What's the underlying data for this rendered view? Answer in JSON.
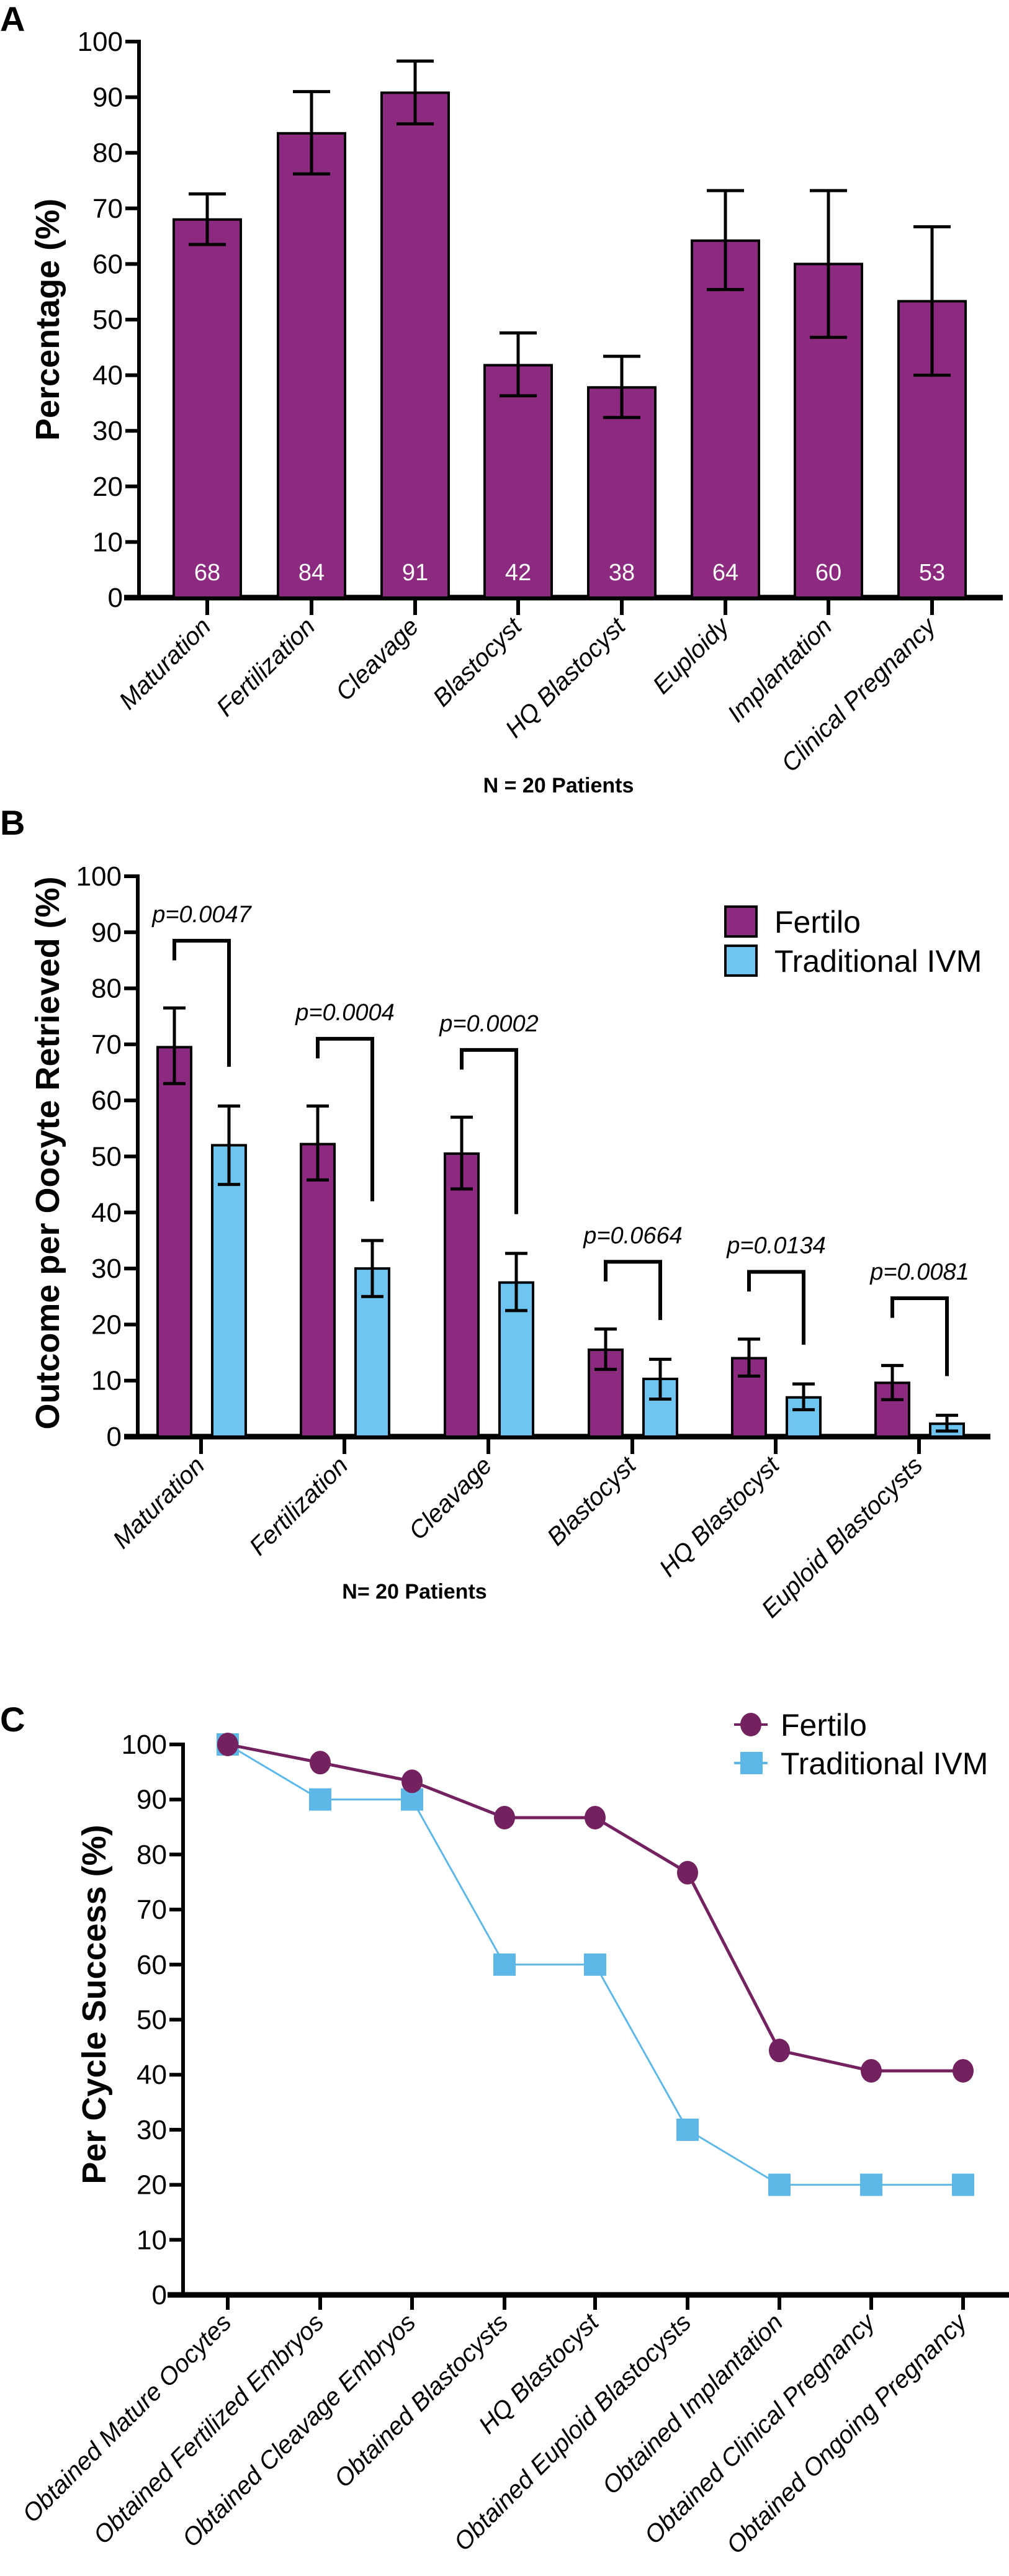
{
  "chart_data": [
    {
      "panel": "A",
      "type": "bar",
      "ylabel": "Percentage (%)",
      "xlabel": "N = 20 Patients",
      "ylim": [
        0,
        100
      ],
      "yticks": [
        "0",
        "10",
        "20",
        "30",
        "40",
        "50",
        "60",
        "70",
        "80",
        "90",
        "100"
      ],
      "categories": [
        "Maturation",
        "Fertilization",
        "Cleavage",
        "Blastocyst",
        "HQ Blastocyst",
        "Euploidy",
        "Implantation",
        "Clinical Pregnancy"
      ],
      "values": [
        68,
        83.5,
        90.8,
        41.8,
        37.8,
        64.2,
        60,
        53.3
      ],
      "data_labels": [
        "68",
        "84",
        "91",
        "42",
        "38",
        "64",
        "60",
        "53"
      ],
      "error_low": [
        63.5,
        76.2,
        85.2,
        36.3,
        32.4,
        55.4,
        46.8,
        40
      ],
      "error_high": [
        72.6,
        91,
        96.5,
        47.6,
        43.4,
        73.2,
        73.2,
        66.7
      ],
      "color": "#8B2A7E"
    },
    {
      "panel": "B",
      "type": "bar",
      "ylabel": "Outcome per Oocyte Retrieved (%)",
      "xlabel": "N= 20 Patients",
      "ylim": [
        0,
        100
      ],
      "yticks": [
        "0",
        "10",
        "20",
        "30",
        "40",
        "50",
        "60",
        "70",
        "80",
        "90",
        "100"
      ],
      "legend_position": "top-right",
      "categories": [
        "Maturation",
        "Fertilization",
        "Cleavage",
        "Blastocyst",
        "HQ Blastocyst",
        "Euploid Blastocysts"
      ],
      "series": [
        {
          "name": "Fertilo",
          "color": "#8B2A7E",
          "values": [
            69.5,
            52.2,
            50.5,
            15.5,
            14,
            9.6
          ],
          "error_low": [
            63,
            45.8,
            44.2,
            12,
            10.8,
            6.6
          ],
          "error_high": [
            76.5,
            59,
            57,
            19.2,
            17.4,
            12.7
          ]
        },
        {
          "name": "Traditional IVM",
          "color": "#6EC6F0",
          "values": [
            52,
            30,
            27.5,
            10.3,
            7,
            2.3
          ],
          "error_low": [
            45,
            25,
            22.5,
            6.7,
            4.8,
            1
          ],
          "error_high": [
            59,
            35,
            32.7,
            13.8,
            9.4,
            3.8
          ]
        }
      ],
      "p_values": [
        "p=0.0047",
        "p=0.0004",
        "p=0.0002",
        "p=0.0664",
        "p=0.0134",
        "p=0.0081"
      ]
    },
    {
      "panel": "C",
      "type": "line",
      "ylabel": "Per Cycle Success (%)",
      "ylim": [
        0,
        100
      ],
      "yticks": [
        "0",
        "10",
        "20",
        "30",
        "40",
        "50",
        "60",
        "70",
        "80",
        "90",
        "100"
      ],
      "legend_position": "top-right",
      "categories": [
        "Obtained Mature Oocytes",
        "Obtained Fertilized Embryos",
        "Obtained Cleavage Embryos",
        "Obtained Blastocysts",
        "HQ Blastocyst",
        "Obtained Euploid Blastocysts",
        "Obtained Implantation",
        "Obtained Clinical Pregnancy",
        "Obtained Ongoing Pregnancy"
      ],
      "series": [
        {
          "name": "Fertilo",
          "color": "#74215F",
          "marker": "circle",
          "values": [
            100,
            96.7,
            93.3,
            86.7,
            86.7,
            76.7,
            44.4,
            40.7,
            40.7
          ]
        },
        {
          "name": "Traditional IVM",
          "color": "#5DB8E8",
          "marker": "square",
          "values": [
            100,
            90,
            90,
            60,
            60,
            30,
            20,
            20,
            20
          ]
        }
      ]
    }
  ]
}
